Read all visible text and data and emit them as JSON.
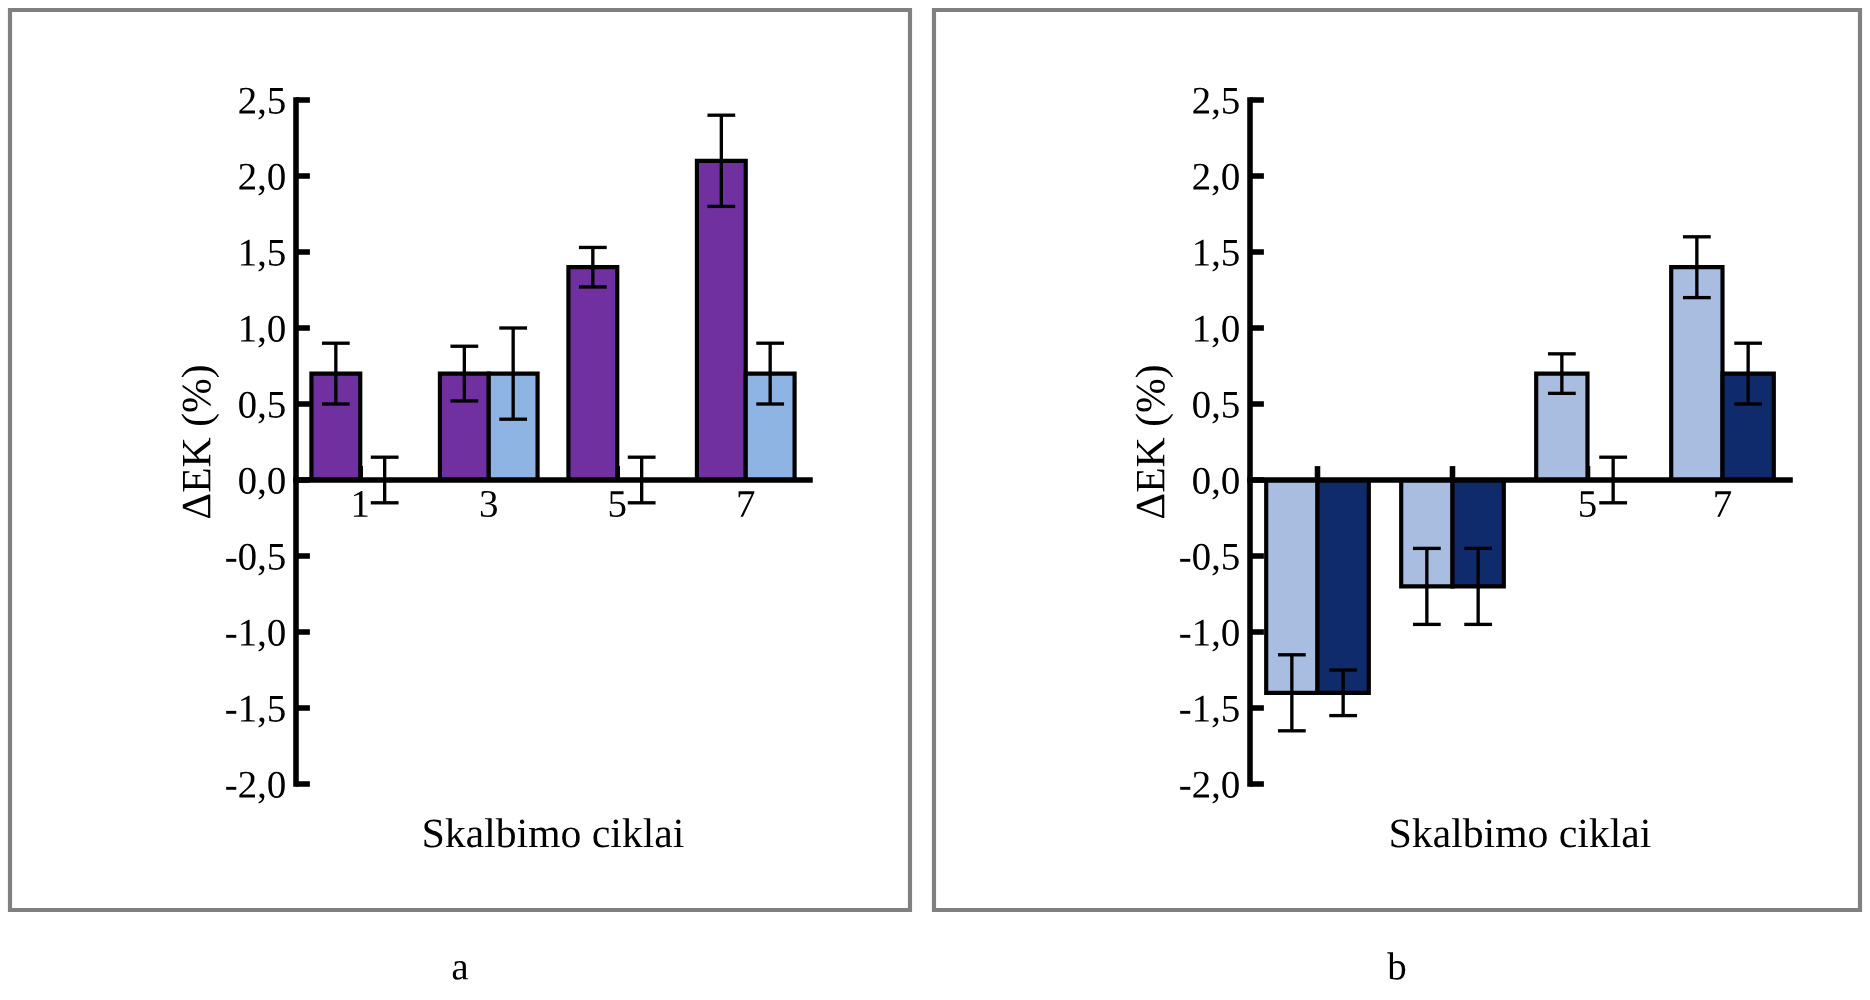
{
  "chart_data": [
    {
      "type": "bar",
      "categories": [
        "1",
        "3",
        "5",
        "7"
      ],
      "xlabel": "Skalbimo ciklai",
      "ylabel": "ΔEK (%)",
      "ylim": [
        -2.0,
        2.5
      ],
      "yticks": [
        {
          "value": -2.0,
          "label": "-2,0"
        },
        {
          "value": -1.5,
          "label": "-1,5"
        },
        {
          "value": -1.0,
          "label": "-1,0"
        },
        {
          "value": -0.5,
          "label": "-0,5"
        },
        {
          "value": 0.0,
          "label": "0,0"
        },
        {
          "value": 0.5,
          "label": "0,5"
        },
        {
          "value": 1.0,
          "label": "1,0"
        },
        {
          "value": 1.5,
          "label": "1,5"
        },
        {
          "value": 2.0,
          "label": "2,0"
        },
        {
          "value": 2.5,
          "label": "2,5"
        }
      ],
      "series": [
        {
          "color": "#7030a0",
          "values": [
            0.7,
            0.7,
            1.4,
            2.1
          ],
          "errors": [
            0.2,
            0.18,
            0.13,
            0.3
          ]
        },
        {
          "color": "#8eb4e3",
          "values": [
            0.0,
            0.7,
            0.0,
            0.7
          ],
          "errors": [
            0.15,
            0.3,
            0.15,
            0.2
          ]
        }
      ],
      "grid": false,
      "annotations": [
        "a"
      ]
    },
    {
      "type": "bar",
      "categories": [
        null,
        null,
        "5",
        "7"
      ],
      "xlabel": "Skalbimo ciklai",
      "ylabel": "ΔEK (%)",
      "ylim": [
        -2.0,
        2.5
      ],
      "yticks": [
        {
          "value": -2.0,
          "label": "-2,0"
        },
        {
          "value": -1.5,
          "label": "-1,5"
        },
        {
          "value": -1.0,
          "label": "-1,0"
        },
        {
          "value": -0.5,
          "label": "-0,5"
        },
        {
          "value": 0.0,
          "label": "0,0"
        },
        {
          "value": 0.5,
          "label": "0,5"
        },
        {
          "value": 1.0,
          "label": "1,0"
        },
        {
          "value": 1.5,
          "label": "1,5"
        },
        {
          "value": 2.0,
          "label": "2,0"
        },
        {
          "value": 2.5,
          "label": "2,5"
        }
      ],
      "series": [
        {
          "color": "#a9bde0",
          "values": [
            -1.4,
            -0.7,
            0.7,
            1.4
          ],
          "errors": [
            0.25,
            0.25,
            0.13,
            0.2
          ]
        },
        {
          "color": "#0f2b6b",
          "values": [
            -1.4,
            -0.7,
            0.0,
            0.7
          ],
          "errors": [
            0.15,
            0.25,
            0.15,
            0.2
          ]
        }
      ],
      "grid": false,
      "annotations": [
        "b"
      ]
    }
  ]
}
